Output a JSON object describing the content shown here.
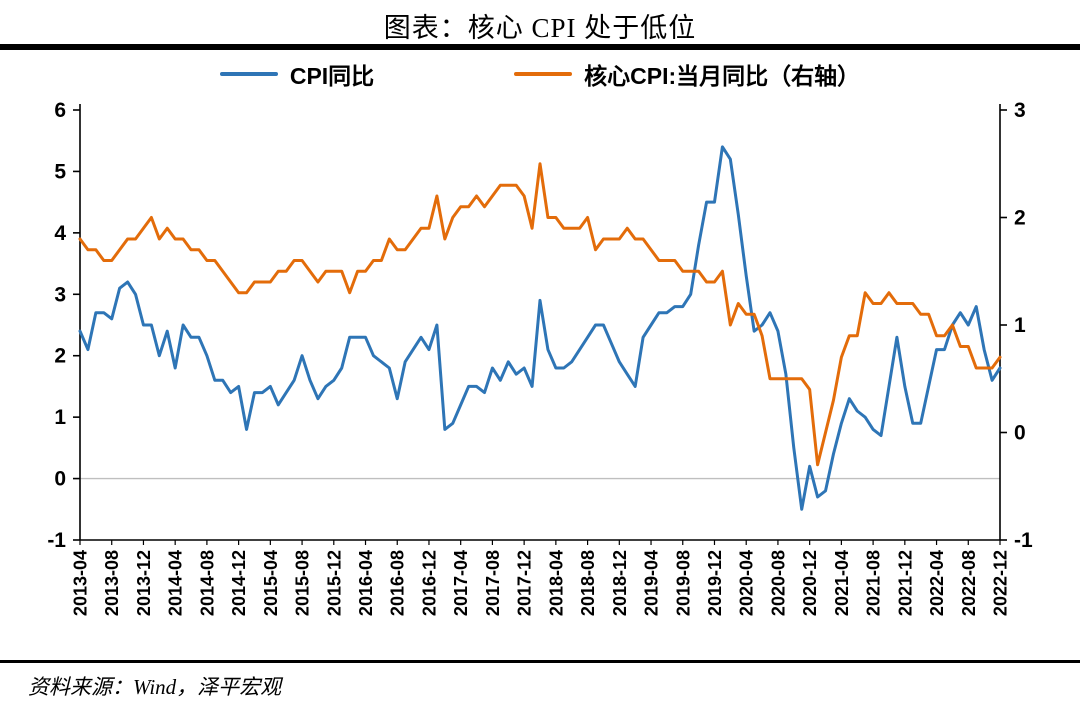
{
  "title": "图表：核心 CPI 处于低位",
  "legend": [
    {
      "label": "CPI同比",
      "color": "#2e75b6"
    },
    {
      "label": "核心CPI:当月同比（右轴）",
      "color": "#e36c0a"
    }
  ],
  "source": "资料来源：Wind，泽平宏观",
  "chart_data": {
    "type": "line",
    "title": "图表：核心 CPI 处于低位",
    "x_label_step": 4,
    "x_labels": [
      "2013-04",
      "2013-08",
      "2013-12",
      "2014-04",
      "2014-08",
      "2014-12",
      "2015-04",
      "2015-08",
      "2015-12",
      "2016-04",
      "2016-08",
      "2016-12",
      "2017-04",
      "2017-08",
      "2017-12",
      "2018-04",
      "2018-08",
      "2018-12",
      "2019-04",
      "2019-08",
      "2019-12",
      "2020-04",
      "2020-08",
      "2020-12",
      "2021-04",
      "2021-08",
      "2021-12",
      "2022-04",
      "2022-08",
      "2022-12"
    ],
    "left_axis": {
      "min": -1,
      "max": 6,
      "ticks": [
        6,
        5,
        4,
        3,
        2,
        1,
        0,
        -1
      ]
    },
    "right_axis": {
      "min": -1,
      "max": 3,
      "ticks": [
        3,
        2,
        1,
        0,
        -1
      ]
    },
    "zero_line": true,
    "series": [
      {
        "name": "CPI同比",
        "axis": "left",
        "color": "#2e75b6",
        "values": [
          2.4,
          2.1,
          2.7,
          2.7,
          2.6,
          3.1,
          3.2,
          3.0,
          2.5,
          2.5,
          2.0,
          2.4,
          1.8,
          2.5,
          2.3,
          2.3,
          2.0,
          1.6,
          1.6,
          1.4,
          1.5,
          0.8,
          1.4,
          1.4,
          1.5,
          1.2,
          1.4,
          1.6,
          2.0,
          1.6,
          1.3,
          1.5,
          1.6,
          1.8,
          2.3,
          2.3,
          2.3,
          2.0,
          1.9,
          1.8,
          1.3,
          1.9,
          2.1,
          2.3,
          2.1,
          2.5,
          0.8,
          0.9,
          1.2,
          1.5,
          1.5,
          1.4,
          1.8,
          1.6,
          1.9,
          1.7,
          1.8,
          1.5,
          2.9,
          2.1,
          1.8,
          1.8,
          1.9,
          2.1,
          2.3,
          2.5,
          2.5,
          2.2,
          1.9,
          1.7,
          1.5,
          2.3,
          2.5,
          2.7,
          2.7,
          2.8,
          2.8,
          3.0,
          3.8,
          4.5,
          4.5,
          5.4,
          5.2,
          4.3,
          3.3,
          2.4,
          2.5,
          2.7,
          2.4,
          1.7,
          0.5,
          -0.5,
          0.2,
          -0.3,
          -0.2,
          0.4,
          0.9,
          1.3,
          1.1,
          1.0,
          0.8,
          0.7,
          1.5,
          2.3,
          1.5,
          0.9,
          0.9,
          1.5,
          2.1,
          2.1,
          2.5,
          2.7,
          2.5,
          2.8,
          2.1,
          1.6,
          1.8
        ]
      },
      {
        "name": "核心CPI:当月同比（右轴）",
        "axis": "right",
        "color": "#e36c0a",
        "values": [
          1.8,
          1.7,
          1.7,
          1.6,
          1.6,
          1.7,
          1.8,
          1.8,
          1.9,
          2.0,
          1.8,
          1.9,
          1.8,
          1.8,
          1.7,
          1.7,
          1.6,
          1.6,
          1.5,
          1.4,
          1.3,
          1.3,
          1.4,
          1.4,
          1.4,
          1.5,
          1.5,
          1.6,
          1.6,
          1.5,
          1.4,
          1.5,
          1.5,
          1.5,
          1.3,
          1.5,
          1.5,
          1.6,
          1.6,
          1.8,
          1.7,
          1.7,
          1.8,
          1.9,
          1.9,
          2.2,
          1.8,
          2.0,
          2.1,
          2.1,
          2.2,
          2.1,
          2.2,
          2.3,
          2.3,
          2.3,
          2.2,
          1.9,
          2.5,
          2.0,
          2.0,
          1.9,
          1.9,
          1.9,
          2.0,
          1.7,
          1.8,
          1.8,
          1.8,
          1.9,
          1.8,
          1.8,
          1.7,
          1.6,
          1.6,
          1.6,
          1.5,
          1.5,
          1.5,
          1.4,
          1.4,
          1.5,
          1.0,
          1.2,
          1.1,
          1.1,
          0.9,
          0.5,
          0.5,
          0.5,
          0.5,
          0.5,
          0.4,
          -0.3,
          0.0,
          0.3,
          0.7,
          0.9,
          0.9,
          1.3,
          1.2,
          1.2,
          1.3,
          1.2,
          1.2,
          1.2,
          1.1,
          1.1,
          0.9,
          0.9,
          1.0,
          0.8,
          0.8,
          0.6,
          0.6,
          0.6,
          0.7
        ]
      }
    ]
  }
}
